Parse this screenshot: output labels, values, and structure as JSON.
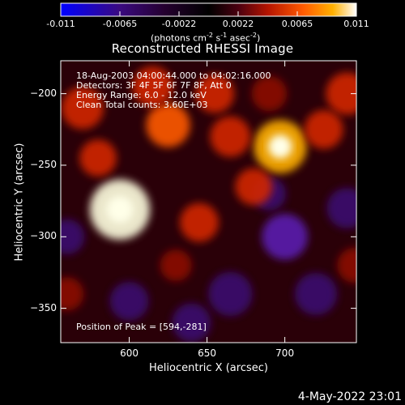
{
  "colorbar": {
    "ticks": [
      "-0.011",
      "-0.0065",
      "-0.0022",
      "0.0022",
      "0.0065",
      "0.011"
    ],
    "units_prefix": "(photons cm",
    "units_exp1": "-2",
    "units_mid1": " s",
    "units_exp2": "-1",
    "units_mid2": " asec",
    "units_exp3": "-2",
    "units_suffix": ")"
  },
  "plot": {
    "title": "Reconstructed RHESSI Image",
    "info_lines": [
      "18-Aug-2003 04:00:44.000 to 04:02:16.000",
      "Detectors: 3F 4F 5F 6F 7F 8F, Att 0",
      "Energy Range: 6.0 - 12.0 keV",
      "Clean      Total counts: 3.60E+03"
    ],
    "peak_text": "Position of Peak = [594,-281]",
    "timestamp": "4-May-2022 23:01"
  },
  "chart_data": {
    "type": "heatmap",
    "title": "Reconstructed RHESSI Image",
    "xlabel": "Heliocentric X (arcsec)",
    "ylabel": "Heliocentric Y (arcsec)",
    "xlim": [
      556,
      746
    ],
    "ylim": [
      -374,
      -177
    ],
    "x_ticks": [
      600,
      650,
      700
    ],
    "y_ticks": [
      -200,
      -250,
      -300,
      -350
    ],
    "x_tick_labels": [
      "600",
      "650",
      "700"
    ],
    "y_tick_labels": [
      "−200",
      "−250",
      "−300",
      "−350"
    ],
    "colorbar_range": [
      -0.011,
      0.011
    ],
    "colormap": [
      "#0000ff",
      "#3a0a80",
      "#250030",
      "#000000",
      "#4a0010",
      "#b41400",
      "#ff5a00",
      "#ffb000",
      "#ffffff"
    ],
    "peak": {
      "x": 594,
      "y": -281
    },
    "sources": [
      {
        "x": 594,
        "y": -281,
        "value": 0.0105
      },
      {
        "x": 697,
        "y": -237,
        "value": 0.0085
      },
      {
        "x": 625,
        "y": -222,
        "value": 0.006
      },
      {
        "x": 570,
        "y": -210,
        "value": 0.0055
      },
      {
        "x": 665,
        "y": -230,
        "value": 0.005
      },
      {
        "x": 740,
        "y": -200,
        "value": 0.0055
      },
      {
        "x": 645,
        "y": -290,
        "value": 0.0045
      },
      {
        "x": 615,
        "y": -195,
        "value": 0.005
      },
      {
        "x": 680,
        "y": -265,
        "value": 0.004
      },
      {
        "x": 725,
        "y": -225,
        "value": 0.0045
      },
      {
        "x": 580,
        "y": -245,
        "value": 0.004
      },
      {
        "x": 655,
        "y": -200,
        "value": 0.0045
      },
      {
        "x": 560,
        "y": -340,
        "value": 0.003
      },
      {
        "x": 745,
        "y": -320,
        "value": 0.0035
      },
      {
        "x": 630,
        "y": -320,
        "value": 0.0025
      },
      {
        "x": 690,
        "y": -200,
        "value": 0.0035
      }
    ],
    "negatives": [
      {
        "x": 700,
        "y": -300,
        "value": -0.0065
      },
      {
        "x": 665,
        "y": -340,
        "value": -0.006
      },
      {
        "x": 720,
        "y": -340,
        "value": -0.0055
      },
      {
        "x": 740,
        "y": -280,
        "value": -0.005
      },
      {
        "x": 600,
        "y": -345,
        "value": -0.0045
      },
      {
        "x": 640,
        "y": -360,
        "value": -0.0045
      },
      {
        "x": 690,
        "y": -270,
        "value": -0.003
      },
      {
        "x": 560,
        "y": -300,
        "value": -0.0035
      }
    ]
  }
}
